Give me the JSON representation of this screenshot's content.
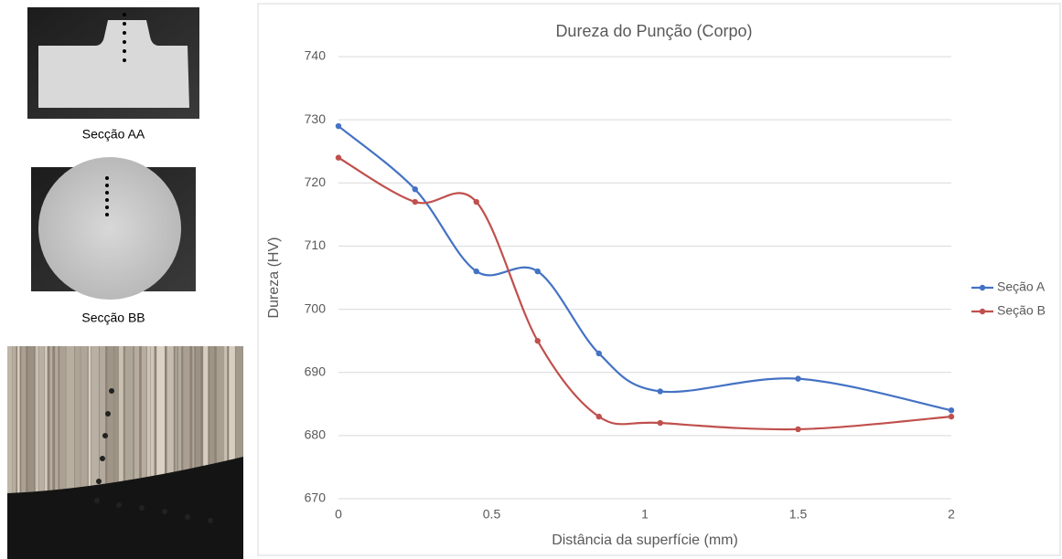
{
  "panels": [
    {
      "caption": "Secção AA"
    },
    {
      "caption": "Secção BB"
    }
  ],
  "chart_data": {
    "type": "line",
    "title": "Dureza do Punção (Corpo)",
    "x_label": "Distância da superfície (mm)",
    "y_label": "Dureza (HV)",
    "x": [
      0,
      0.25,
      0.45,
      0.65,
      0.85,
      1.05,
      1.5,
      2
    ],
    "series": [
      {
        "name": "Seção A",
        "color": "#4472c4",
        "values": [
          729,
          719,
          706,
          706,
          693,
          687,
          689,
          684
        ]
      },
      {
        "name": "Seção B",
        "color": "#c0504d",
        "values": [
          724,
          717,
          717,
          695,
          683,
          682,
          681,
          683
        ]
      }
    ],
    "xlim": [
      0,
      2
    ],
    "xticks": [
      0,
      0.5,
      1,
      1.5,
      2
    ],
    "ylim": [
      670,
      740
    ],
    "yticks": [
      670,
      680,
      690,
      700,
      710,
      720,
      730,
      740
    ],
    "grid": true,
    "smooth": true,
    "legend": "right"
  }
}
